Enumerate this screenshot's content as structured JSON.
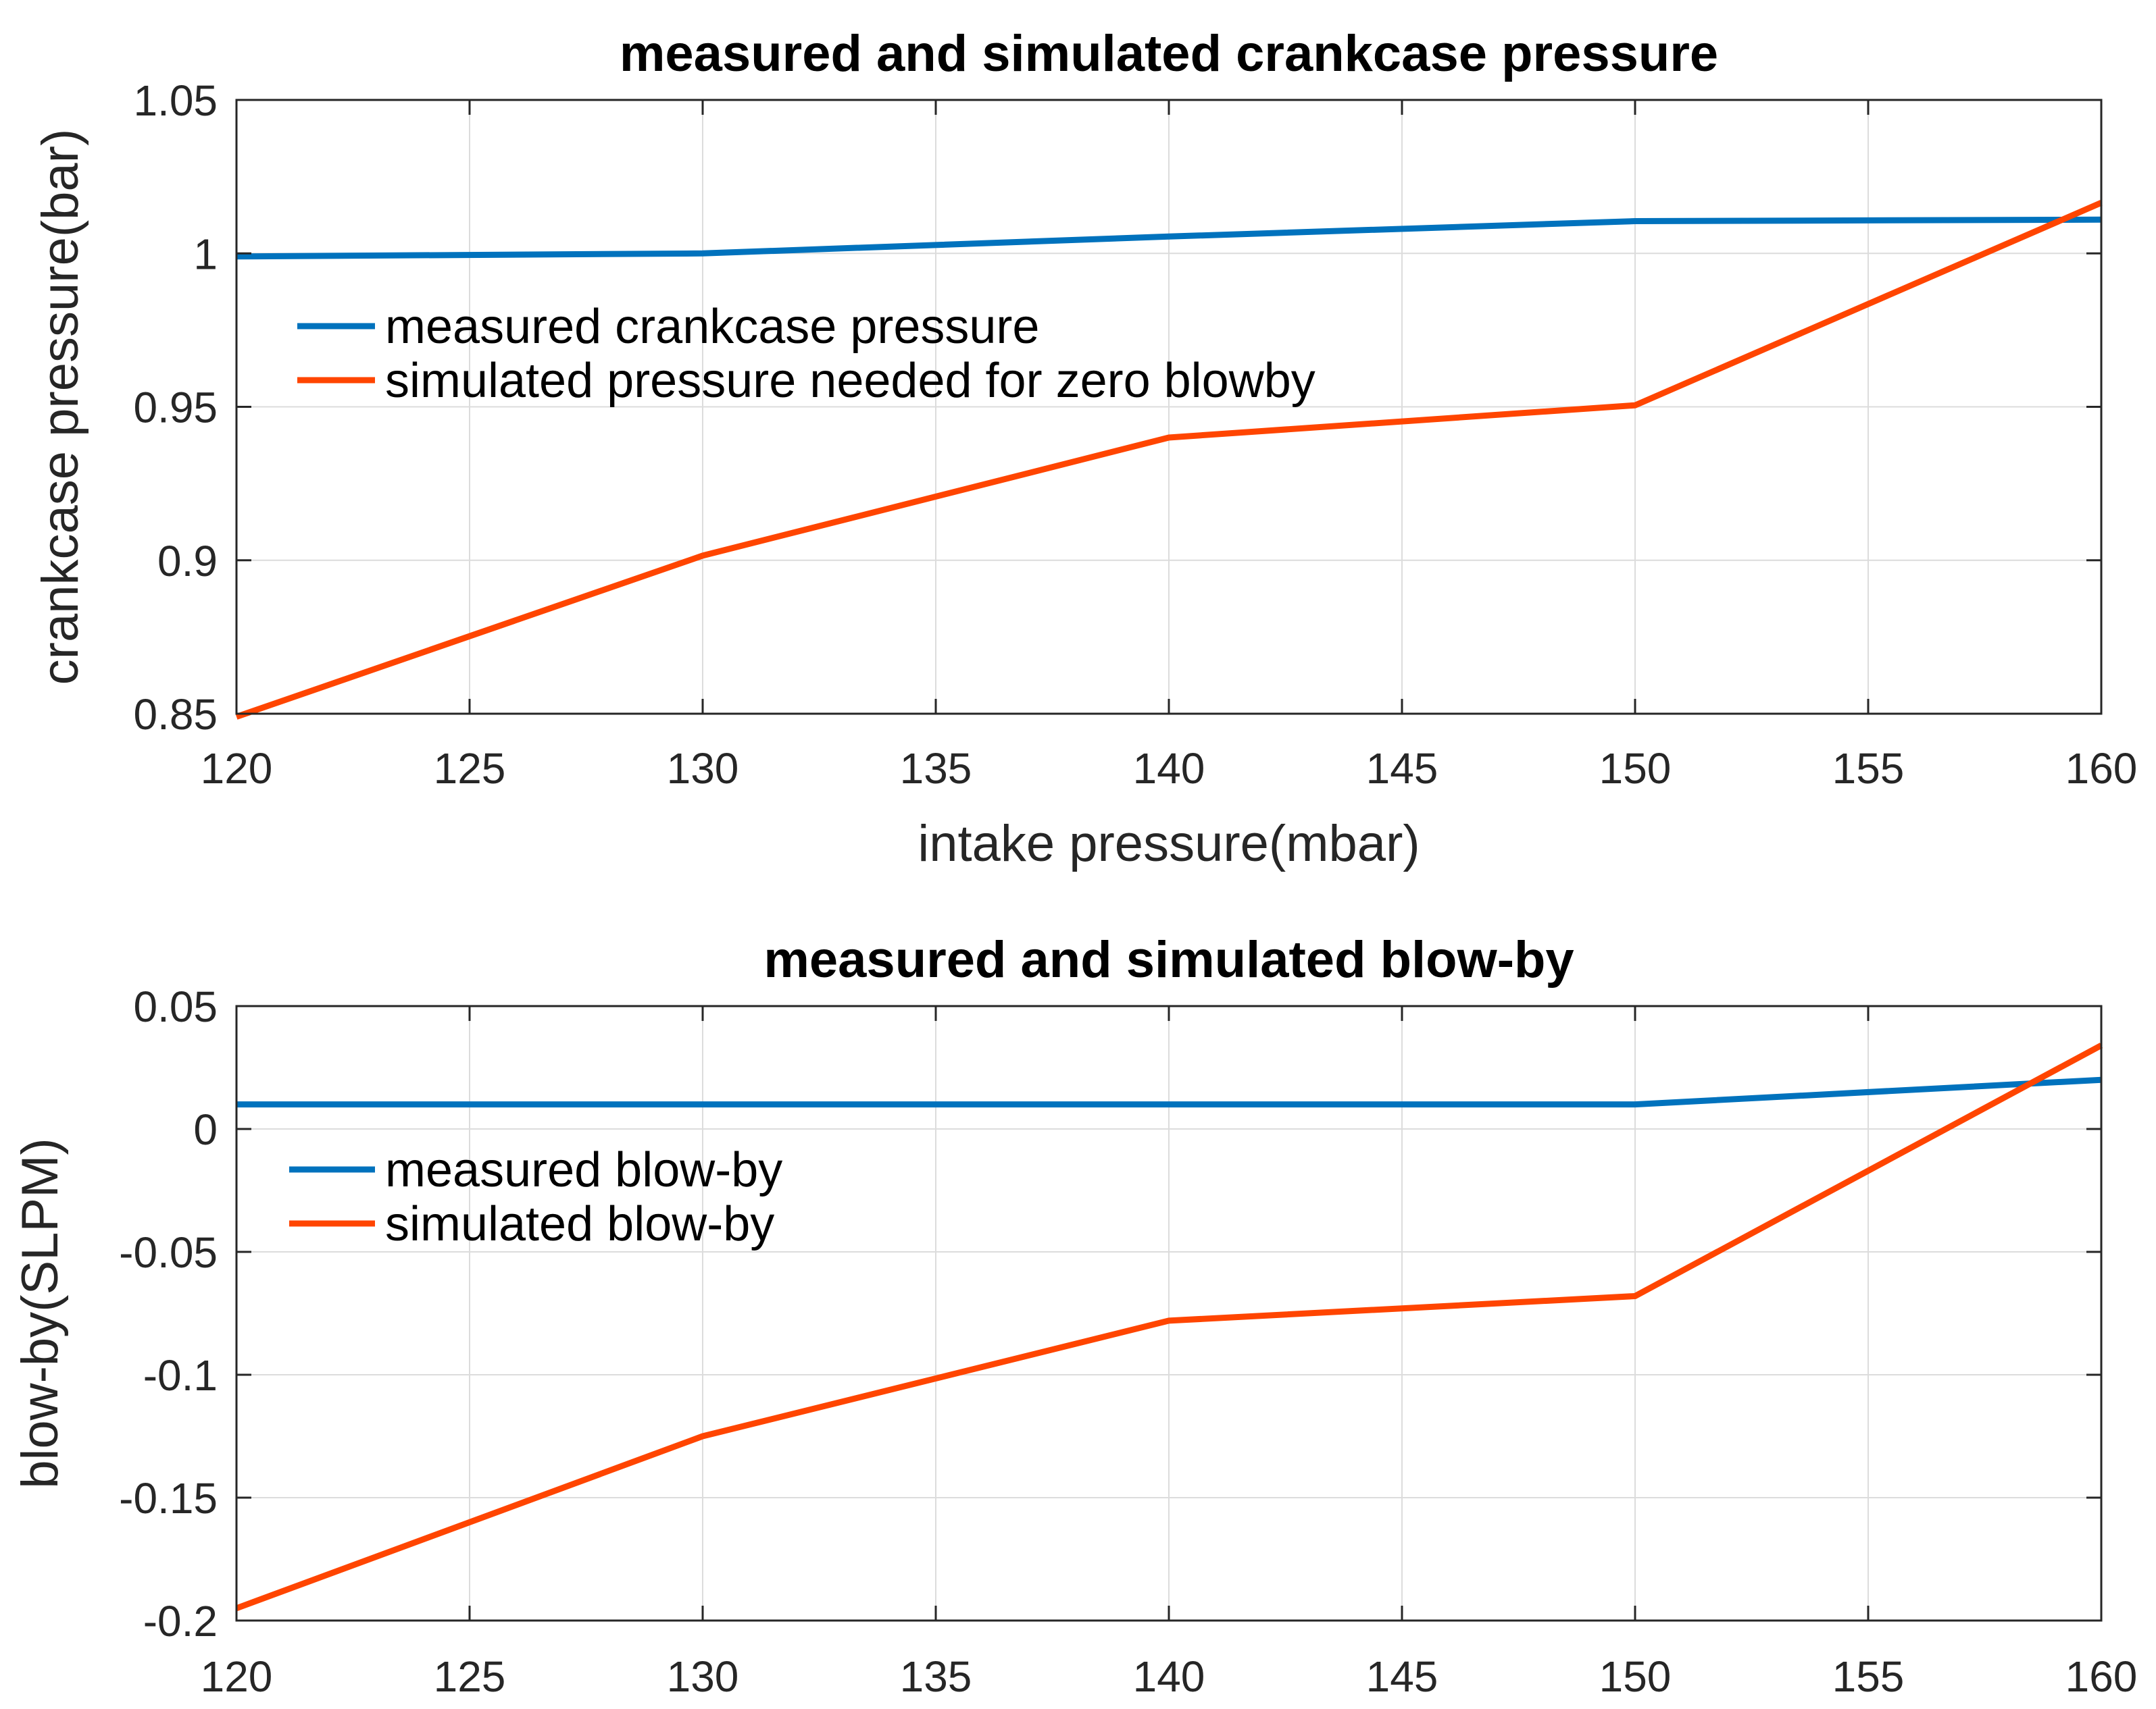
{
  "chart_data": [
    {
      "type": "line",
      "title": "measured and simulated crankcase pressure",
      "xlabel": "intake pressure(mbar)",
      "ylabel": "crankcase pressure(bar)",
      "xlim": [
        120,
        160
      ],
      "ylim": [
        0.85,
        1.05
      ],
      "xticks": [
        120,
        125,
        130,
        135,
        140,
        145,
        150,
        155,
        160
      ],
      "xtick_labels": [
        "120",
        "125",
        "130",
        "135",
        "140",
        "145",
        "150",
        "155",
        "160"
      ],
      "yticks": [
        0.85,
        0.9,
        0.95,
        1,
        1.05
      ],
      "ytick_labels": [
        "0.85",
        "0.9",
        "0.95",
        "1",
        "1.05"
      ],
      "grid": true,
      "legend_position": "upper-left",
      "series": [
        {
          "name": "measured crankcase pressure",
          "color": "#0072BD",
          "x": [
            120,
            130,
            140,
            150,
            160
          ],
          "values": [
            0.999,
            1.0,
            1.0055,
            1.0105,
            1.011
          ]
        },
        {
          "name": "simulated pressure needed for zero blowby",
          "color": "#FF4500",
          "x": [
            120,
            130,
            140,
            150,
            160
          ],
          "values": [
            0.849,
            0.9015,
            0.94,
            0.9505,
            1.0165
          ]
        }
      ]
    },
    {
      "type": "line",
      "title": "measured and simulated blow-by",
      "xlabel": "",
      "ylabel": "blow-by(SLPM)",
      "xlim": [
        120,
        160
      ],
      "ylim": [
        -0.2,
        0.05
      ],
      "xticks": [
        120,
        125,
        130,
        135,
        140,
        145,
        150,
        155,
        160
      ],
      "xtick_labels": [
        "120",
        "125",
        "130",
        "135",
        "140",
        "145",
        "150",
        "155",
        "160"
      ],
      "yticks": [
        -0.2,
        -0.15,
        -0.1,
        -0.05,
        0,
        0.05
      ],
      "ytick_labels": [
        "-0.2",
        "-0.15",
        "-0.1",
        "-0.05",
        "0",
        "0.05"
      ],
      "grid": true,
      "legend_position": "upper-left",
      "series": [
        {
          "name": "measured blow-by",
          "color": "#0072BD",
          "x": [
            120,
            130,
            140,
            150,
            160
          ],
          "values": [
            0.01,
            0.01,
            0.01,
            0.01,
            0.02
          ]
        },
        {
          "name": "simulated blow-by",
          "color": "#FF4500",
          "x": [
            120,
            130,
            140,
            150,
            160
          ],
          "values": [
            -0.195,
            -0.125,
            -0.078,
            -0.068,
            0.034
          ]
        }
      ]
    }
  ]
}
